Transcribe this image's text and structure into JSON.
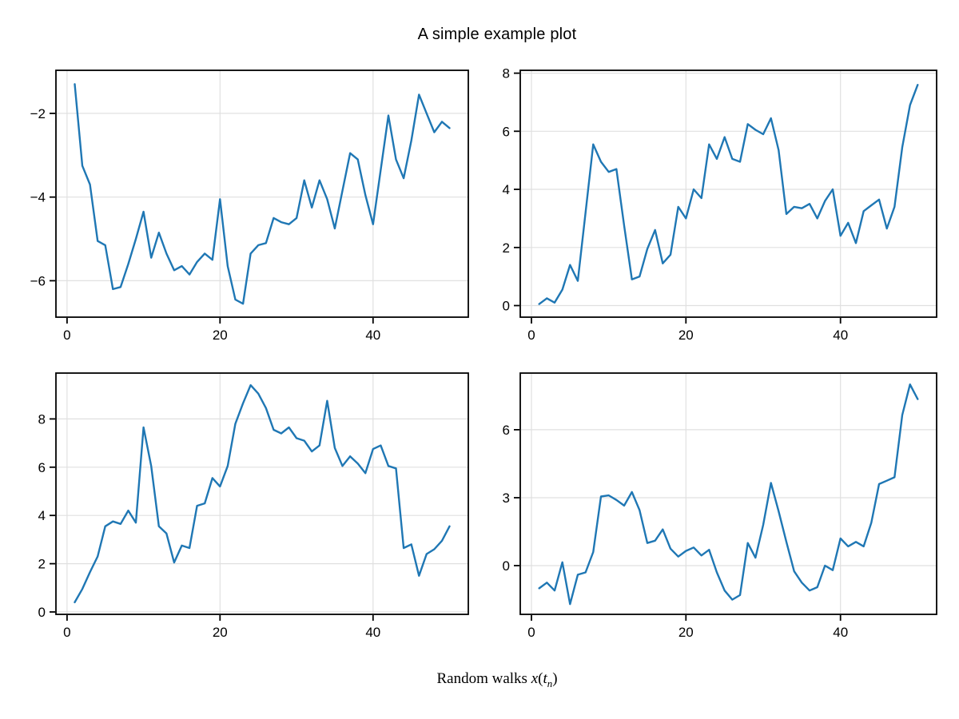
{
  "figure": {
    "title": "A simple example plot",
    "xlabel_prefix": "Random walks ",
    "xlabel_var_x": "x",
    "xlabel_open_paren": "(",
    "xlabel_var_t": "t",
    "xlabel_subscript": "n",
    "xlabel_close_paren": ")",
    "colors": {
      "line": "#1f77b4",
      "grid": "#e0e0e0",
      "spine": "#000000",
      "text": "#000000",
      "background": "#ffffff"
    }
  },
  "chart_data": [
    {
      "id": "top-left",
      "type": "line",
      "title": "",
      "xlabel": "",
      "ylabel": "",
      "grid": true,
      "legend": null,
      "xticks": [
        0,
        20,
        40
      ],
      "yticks": [
        -6,
        -4,
        -2
      ],
      "xlim": [
        -1.45,
        52.45
      ],
      "ylim": [
        -6.87,
        -0.97
      ],
      "x": [
        1,
        2,
        3,
        4,
        5,
        6,
        7,
        8,
        9,
        10,
        11,
        12,
        13,
        14,
        15,
        16,
        17,
        18,
        19,
        20,
        21,
        22,
        23,
        24,
        25,
        26,
        27,
        28,
        29,
        30,
        31,
        32,
        33,
        34,
        35,
        36,
        37,
        38,
        39,
        40,
        41,
        42,
        43,
        44,
        45,
        46,
        47,
        48,
        49,
        50
      ],
      "values": [
        -1.3,
        -3.25,
        -3.7,
        -5.05,
        -5.15,
        -6.2,
        -6.15,
        -5.6,
        -5.0,
        -4.35,
        -5.45,
        -4.85,
        -5.35,
        -5.75,
        -5.65,
        -5.85,
        -5.55,
        -5.35,
        -5.5,
        -4.05,
        -5.65,
        -6.45,
        -6.55,
        -5.35,
        -5.15,
        -5.1,
        -4.5,
        -4.6,
        -4.65,
        -4.5,
        -3.6,
        -4.25,
        -3.6,
        -4.05,
        -4.75,
        -3.85,
        -2.95,
        -3.1,
        -3.95,
        -4.65,
        -3.35,
        -2.05,
        -3.1,
        -3.55,
        -2.65,
        -1.55,
        -2.0,
        -2.45,
        -2.2,
        -2.35
      ]
    },
    {
      "id": "top-right",
      "type": "line",
      "title": "",
      "xlabel": "",
      "ylabel": "",
      "grid": true,
      "legend": null,
      "xticks": [
        0,
        20,
        40
      ],
      "yticks": [
        0,
        2,
        4,
        6,
        8
      ],
      "xlim": [
        -1.45,
        52.45
      ],
      "ylim": [
        -0.4,
        8.1
      ],
      "x": [
        1,
        2,
        3,
        4,
        5,
        6,
        7,
        8,
        9,
        10,
        11,
        12,
        13,
        14,
        15,
        16,
        17,
        18,
        19,
        20,
        21,
        22,
        23,
        24,
        25,
        26,
        27,
        28,
        29,
        30,
        31,
        32,
        33,
        34,
        35,
        36,
        37,
        38,
        39,
        40,
        41,
        42,
        43,
        44,
        45,
        46,
        47,
        48,
        49,
        50
      ],
      "values": [
        0.05,
        0.25,
        0.1,
        0.55,
        1.4,
        0.85,
        3.2,
        5.55,
        4.95,
        4.6,
        4.7,
        2.75,
        0.9,
        1.0,
        1.95,
        2.6,
        1.45,
        1.75,
        3.4,
        3.0,
        4.0,
        3.7,
        5.55,
        5.05,
        5.8,
        5.05,
        4.95,
        6.25,
        6.05,
        5.9,
        6.45,
        5.35,
        3.15,
        3.4,
        3.35,
        3.5,
        3.0,
        3.6,
        4.0,
        2.4,
        2.85,
        2.15,
        3.25,
        3.45,
        3.65,
        2.65,
        3.4,
        5.45,
        6.9,
        7.6
      ]
    },
    {
      "id": "bottom-left",
      "type": "line",
      "title": "",
      "xlabel": "",
      "ylabel": "",
      "grid": true,
      "legend": null,
      "xticks": [
        0,
        20,
        40
      ],
      "yticks": [
        0,
        2,
        4,
        6,
        8
      ],
      "xlim": [
        -1.45,
        52.45
      ],
      "ylim": [
        -0.1,
        9.9
      ],
      "x": [
        1,
        2,
        3,
        4,
        5,
        6,
        7,
        8,
        9,
        10,
        11,
        12,
        13,
        14,
        15,
        16,
        17,
        18,
        19,
        20,
        21,
        22,
        23,
        24,
        25,
        26,
        27,
        28,
        29,
        30,
        31,
        32,
        33,
        34,
        35,
        36,
        37,
        38,
        39,
        40,
        41,
        42,
        43,
        44,
        45,
        46,
        47,
        48,
        49,
        50
      ],
      "values": [
        0.4,
        0.95,
        1.65,
        2.3,
        3.55,
        3.75,
        3.65,
        4.2,
        3.7,
        7.65,
        6.05,
        3.55,
        3.25,
        2.05,
        2.75,
        2.65,
        4.4,
        4.5,
        5.55,
        5.2,
        6.05,
        7.8,
        8.65,
        9.4,
        9.05,
        8.45,
        7.55,
        7.4,
        7.65,
        7.2,
        7.1,
        6.65,
        6.9,
        8.75,
        6.8,
        6.05,
        6.45,
        6.15,
        5.75,
        6.75,
        6.9,
        6.05,
        5.95,
        2.65,
        2.8,
        1.5,
        2.4,
        2.6,
        2.95,
        3.55
      ]
    },
    {
      "id": "bottom-right",
      "type": "line",
      "title": "",
      "xlabel": "",
      "ylabel": "",
      "grid": true,
      "legend": null,
      "xticks": [
        0,
        20,
        40
      ],
      "yticks": [
        0,
        3,
        6
      ],
      "xlim": [
        -1.45,
        52.45
      ],
      "ylim": [
        -2.15,
        8.5
      ],
      "x": [
        1,
        2,
        3,
        4,
        5,
        6,
        7,
        8,
        9,
        10,
        11,
        12,
        13,
        14,
        15,
        16,
        17,
        18,
        19,
        20,
        21,
        22,
        23,
        24,
        25,
        26,
        27,
        28,
        29,
        30,
        31,
        32,
        33,
        34,
        35,
        36,
        37,
        38,
        39,
        40,
        41,
        42,
        43,
        44,
        45,
        46,
        47,
        48,
        49,
        50
      ],
      "values": [
        -1.0,
        -0.75,
        -1.1,
        0.15,
        -1.7,
        -0.4,
        -0.3,
        0.6,
        3.05,
        3.1,
        2.9,
        2.65,
        3.25,
        2.45,
        1.0,
        1.1,
        1.6,
        0.75,
        0.4,
        0.65,
        0.8,
        0.45,
        0.7,
        -0.3,
        -1.1,
        -1.5,
        -1.3,
        1.0,
        0.35,
        1.8,
        3.65,
        2.4,
        1.05,
        -0.25,
        -0.75,
        -1.1,
        -0.95,
        0.0,
        -0.2,
        1.2,
        0.85,
        1.05,
        0.85,
        1.9,
        3.6,
        3.75,
        3.9,
        6.65,
        8.0,
        7.35
      ]
    }
  ]
}
